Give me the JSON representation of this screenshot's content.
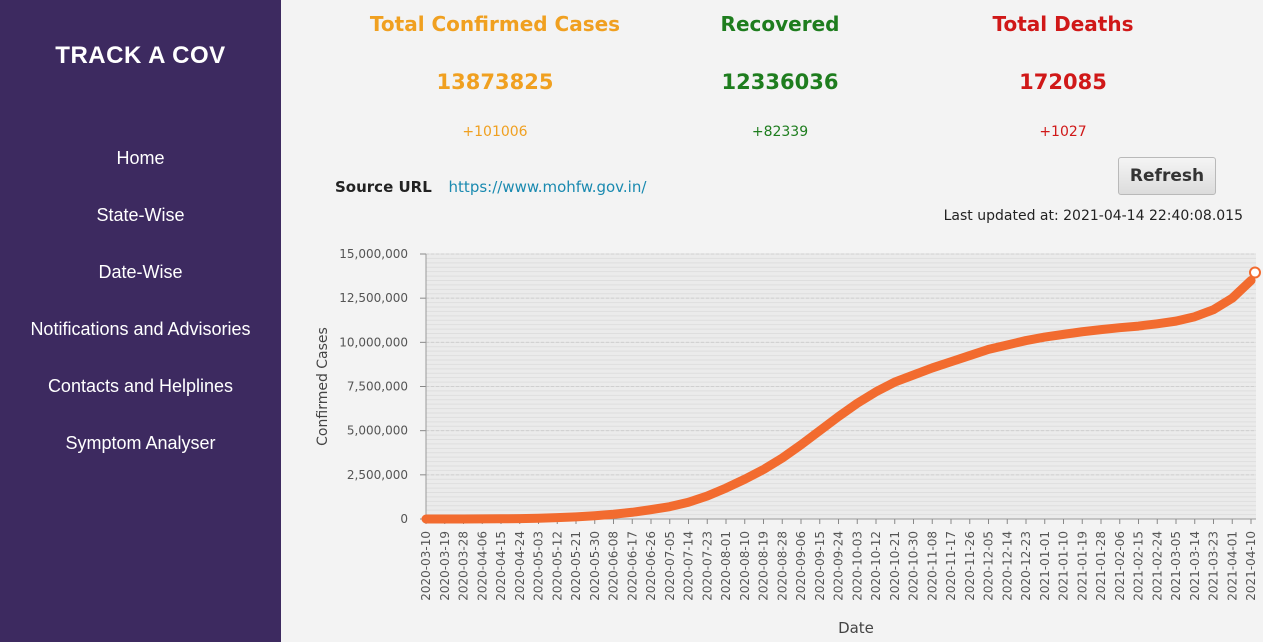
{
  "sidebar": {
    "brand": "TRACK A COV",
    "items": [
      {
        "label": "Home"
      },
      {
        "label": "State-Wise"
      },
      {
        "label": "Date-Wise"
      },
      {
        "label": "Notifications and Advisories"
      },
      {
        "label": "Contacts and Helplines"
      },
      {
        "label": "Symptom Analyser"
      }
    ],
    "background": "#3d2a60"
  },
  "stats": {
    "confirmed": {
      "label": "Total Confirmed Cases",
      "value": "13873825",
      "delta": "+101006",
      "color": "#f0a020"
    },
    "recovered": {
      "label": "Recovered",
      "value": "12336036",
      "delta": "+82339",
      "color": "#1e7d1e"
    },
    "deaths": {
      "label": "Total Deaths",
      "value": "172085",
      "delta": "+1027",
      "color": "#d01818"
    }
  },
  "source": {
    "label": "Source URL",
    "url": "https://www.mohfw.gov.in/"
  },
  "refresh_label": "Refresh",
  "last_updated": "Last updated at: 2021-04-14 22:40:08.015",
  "chart_data": {
    "type": "line",
    "xlabel": "Date",
    "ylabel": "Confirmed Cases",
    "ylim": [
      0,
      15000000
    ],
    "yticks": [
      "0",
      "2,500,000",
      "5,000,000",
      "7,500,000",
      "10,000,000",
      "12,500,000",
      "15,000,000"
    ],
    "line_color": "#f26b2f",
    "grid": true,
    "x": [
      "2020-03-10",
      "2020-03-19",
      "2020-03-28",
      "2020-04-06",
      "2020-04-15",
      "2020-04-24",
      "2020-05-03",
      "2020-05-12",
      "2020-05-21",
      "2020-05-30",
      "2020-06-08",
      "2020-06-17",
      "2020-06-26",
      "2020-07-05",
      "2020-07-14",
      "2020-07-23",
      "2020-08-01",
      "2020-08-10",
      "2020-08-19",
      "2020-08-28",
      "2020-09-06",
      "2020-09-15",
      "2020-09-24",
      "2020-10-03",
      "2020-10-12",
      "2020-10-21",
      "2020-10-30",
      "2020-11-08",
      "2020-11-17",
      "2020-11-26",
      "2020-12-05",
      "2020-12-14",
      "2020-12-23",
      "2021-01-01",
      "2021-01-10",
      "2021-01-19",
      "2021-01-28",
      "2021-02-06",
      "2021-02-15",
      "2021-02-24",
      "2021-03-05",
      "2021-03-14",
      "2021-03-23",
      "2021-04-01",
      "2021-04-10"
    ],
    "series": [
      {
        "values": [
          50,
          200,
          900,
          5000,
          12000,
          24000,
          42000,
          75000,
          120000,
          185000,
          270000,
          380000,
          530000,
          700000,
          950000,
          1300000,
          1750000,
          2250000,
          2800000,
          3450000,
          4200000,
          5000000,
          5800000,
          6550000,
          7200000,
          7750000,
          8150000,
          8550000,
          8900000,
          9250000,
          9600000,
          9850000,
          10100000,
          10300000,
          10450000,
          10600000,
          10720000,
          10830000,
          10920000,
          11050000,
          11200000,
          11450000,
          11850000,
          12500000,
          13500000
        ]
      }
    ]
  }
}
